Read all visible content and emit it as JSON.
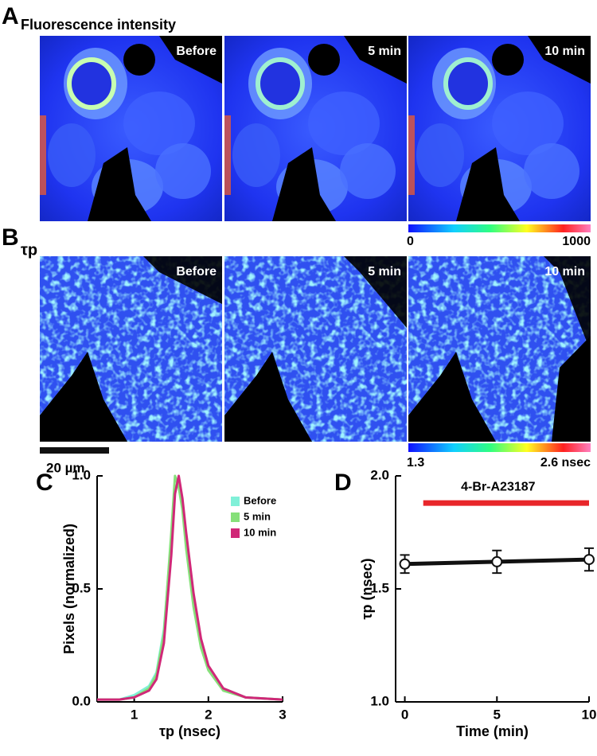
{
  "panel_a": {
    "label": "A",
    "title": "Fluorescence intensity",
    "images": [
      "Before",
      "5 min",
      "10 min"
    ],
    "colorbar": [
      "0",
      "1000"
    ]
  },
  "panel_b": {
    "label": "B",
    "title": "τp",
    "images": [
      "Before",
      "5 min",
      "10 min"
    ],
    "colorbar": [
      "1.3",
      "2.6 nsec"
    ],
    "scale_bar": "20 µm"
  },
  "chart_data": [
    {
      "type": "line",
      "panel_label": "C",
      "x_label": "τp (nsec)",
      "y_label": "Pixels (normalized)",
      "x": [
        0.5,
        0.8,
        1.0,
        1.2,
        1.3,
        1.4,
        1.5,
        1.55,
        1.6,
        1.65,
        1.7,
        1.8,
        1.9,
        2.0,
        2.2,
        2.5,
        3.0
      ],
      "series": [
        {
          "name": "Before",
          "color": "#80f0d8",
          "values": [
            0.01,
            0.01,
            0.03,
            0.07,
            0.13,
            0.32,
            0.72,
            0.93,
            0.98,
            0.88,
            0.72,
            0.45,
            0.26,
            0.15,
            0.06,
            0.02,
            0.01
          ]
        },
        {
          "name": "5 min",
          "color": "#86e07a",
          "values": [
            0.01,
            0.01,
            0.02,
            0.06,
            0.12,
            0.3,
            0.75,
            1.0,
            0.95,
            0.85,
            0.68,
            0.42,
            0.24,
            0.14,
            0.05,
            0.02,
            0.01
          ]
        },
        {
          "name": "10 min",
          "color": "#d02878",
          "values": [
            0.01,
            0.01,
            0.02,
            0.05,
            0.1,
            0.26,
            0.65,
            0.92,
            1.0,
            0.9,
            0.75,
            0.48,
            0.28,
            0.16,
            0.06,
            0.02,
            0.01
          ]
        }
      ],
      "xlim": [
        0.5,
        3
      ],
      "xticks": [
        1,
        2,
        3
      ],
      "ylim": [
        0,
        1
      ],
      "yticks": [
        {
          "value": 0,
          "label": "0.0"
        },
        {
          "value": 0.5,
          "label": "0.5"
        },
        {
          "value": 1,
          "label": "1.0"
        }
      ]
    },
    {
      "type": "errorline",
      "panel_label": "D",
      "x_label": "Time (min)",
      "y_label": "τp (nsec)",
      "x": [
        0,
        5,
        10
      ],
      "series": [
        {
          "color": "#111111",
          "values": [
            1.61,
            1.62,
            1.63
          ],
          "errors": [
            0.04,
            0.05,
            0.05
          ]
        }
      ],
      "annotation": {
        "text": "4-Br-A23187",
        "start": 1,
        "end": 10,
        "level": 1.88,
        "color": "#e8262a"
      },
      "xlim": [
        -0.5,
        10
      ],
      "xticks": [
        0,
        5,
        10
      ],
      "ylim": [
        1,
        2
      ],
      "yticks": [
        {
          "value": 1,
          "label": "1.0"
        },
        {
          "value": 1.5,
          "label": "1.5"
        },
        {
          "value": 2,
          "label": "2.0"
        }
      ]
    }
  ]
}
